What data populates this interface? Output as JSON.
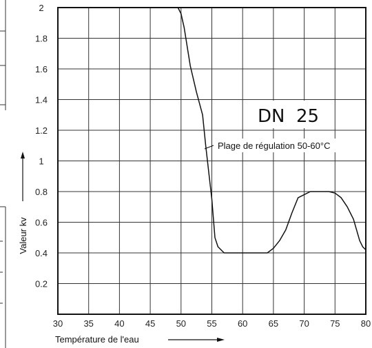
{
  "chart_data": {
    "type": "line",
    "title": "",
    "xlabel": "Température de l'eau",
    "ylabel": "Valeur kv",
    "xlim": [
      30,
      80
    ],
    "ylim": [
      0,
      2
    ],
    "x_ticks": [
      30,
      35,
      40,
      45,
      50,
      55,
      60,
      65,
      70,
      75,
      80
    ],
    "y_ticks": [
      0.2,
      0.4,
      0.6,
      0.8,
      1,
      1.2,
      1.4,
      1.6,
      1.8,
      2
    ],
    "grid": true,
    "series": [
      {
        "values": [
          [
            49.5,
            2.0
          ],
          [
            50.0,
            1.96
          ],
          [
            50.5,
            1.87
          ],
          [
            51.5,
            1.62
          ],
          [
            52.5,
            1.45
          ],
          [
            53.5,
            1.3
          ],
          [
            54.0,
            1.1
          ],
          [
            55.0,
            0.75
          ],
          [
            55.5,
            0.5
          ],
          [
            56.0,
            0.44
          ],
          [
            57.0,
            0.4
          ],
          [
            64.0,
            0.4
          ],
          [
            65.0,
            0.43
          ],
          [
            66.0,
            0.48
          ],
          [
            67.0,
            0.55
          ],
          [
            68.0,
            0.66
          ],
          [
            69.0,
            0.76
          ],
          [
            70.0,
            0.78
          ],
          [
            71.0,
            0.8
          ],
          [
            74.0,
            0.8
          ],
          [
            75.0,
            0.79
          ],
          [
            76.0,
            0.76
          ],
          [
            77.0,
            0.7
          ],
          [
            78.0,
            0.62
          ],
          [
            79.0,
            0.48
          ],
          [
            79.5,
            0.44
          ],
          [
            80.0,
            0.42
          ]
        ]
      }
    ],
    "annotations": [
      {
        "text": "DN  25",
        "at": [
          74,
          1.35
        ]
      },
      {
        "text": "Plage de régulation 50-60°C",
        "at": [
          61.5,
          1.1
        ]
      }
    ]
  }
}
